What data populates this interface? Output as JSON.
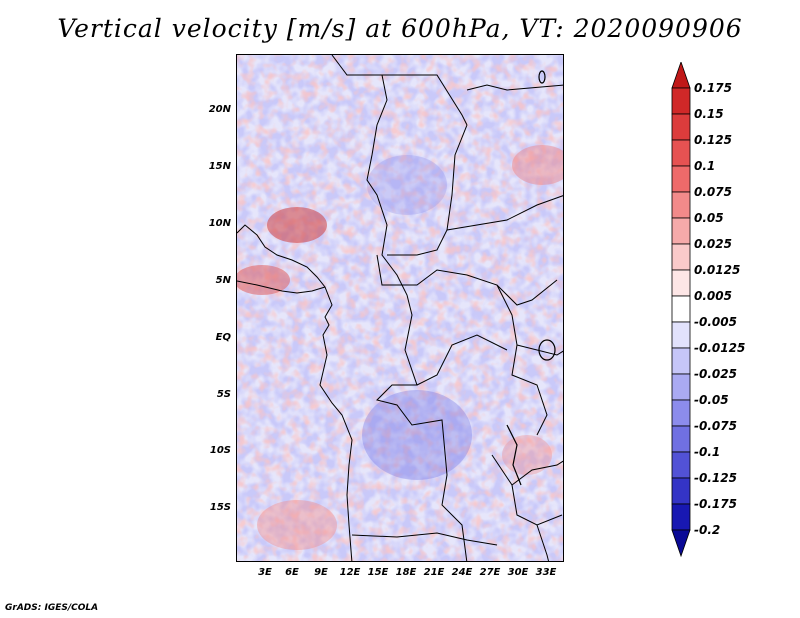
{
  "title": "Vertical velocity [m/s] at 600hPa, VT: 2020090906",
  "footer": "GrADS: IGES/COLA",
  "map": {
    "lat_labels": [
      "20N",
      "15N",
      "10N",
      "5N",
      "EQ",
      "5S",
      "10S",
      "15S"
    ],
    "lon_labels": [
      "3E",
      "6E",
      "9E",
      "12E",
      "15E",
      "18E",
      "21E",
      "24E",
      "27E",
      "30E",
      "33E"
    ]
  },
  "colorbar": {
    "levels": [
      "0.175",
      "0.15",
      "0.125",
      "0.1",
      "0.075",
      "0.05",
      "0.025",
      "0.0125",
      "0.005",
      "-0.005",
      "-0.0125",
      "-0.025",
      "-0.05",
      "-0.075",
      "-0.1",
      "-0.125",
      "-0.175",
      "-0.2"
    ],
    "colors": [
      "#c01818",
      "#d02828",
      "#dc3c3c",
      "#e65252",
      "#ee6a6a",
      "#f28a8a",
      "#f6aaaa",
      "#facaca",
      "#fde6e6",
      "#ffffff",
      "#e2e2fc",
      "#c6c6f8",
      "#aaaaf2",
      "#8c8cec",
      "#7070e2",
      "#5252d6",
      "#3434c6",
      "#1818b2",
      "#0a0a96"
    ]
  }
}
